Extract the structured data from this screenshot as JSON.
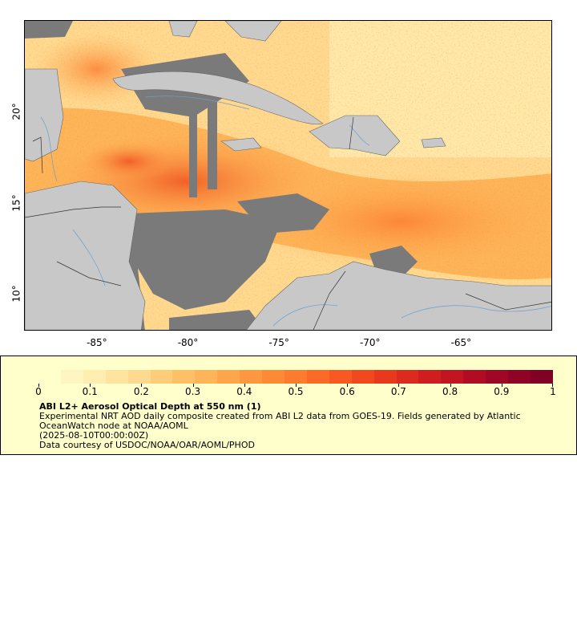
{
  "map": {
    "lon_min": -89,
    "lon_max": -60,
    "lat_min": 8,
    "lat_max": 25,
    "x_ticks": [
      {
        "value": -85,
        "label": "-85°"
      },
      {
        "value": -80,
        "label": "-80°"
      },
      {
        "value": -75,
        "label": "-75°"
      },
      {
        "value": -70,
        "label": "-70°"
      },
      {
        "value": -65,
        "label": "-65°"
      }
    ],
    "y_ticks": [
      {
        "value": 20,
        "label": "20°"
      },
      {
        "value": 15,
        "label": "15°"
      },
      {
        "value": 10,
        "label": "10°"
      }
    ],
    "colors": {
      "land": "#c8c8c8",
      "missing": "#7a7a7a",
      "border": "#333333",
      "river": "#6a9fd0"
    }
  },
  "legend": {
    "colors": [
      "#ffffcc",
      "#fff5c0",
      "#ffeeb0",
      "#ffe4a0",
      "#ffd98f",
      "#ffcc7a",
      "#fec066",
      "#feb458",
      "#fea64c",
      "#fd9840",
      "#fd8a36",
      "#fc7b2e",
      "#fc6a28",
      "#f85922",
      "#f1481e",
      "#e8391c",
      "#dd2a1e",
      "#d01e20",
      "#c11522",
      "#b10c24",
      "#a00626",
      "#8f0426",
      "#800026"
    ],
    "ticks": [
      {
        "value": 0,
        "label": "0"
      },
      {
        "value": 0.1,
        "label": "0.1"
      },
      {
        "value": 0.2,
        "label": "0.2"
      },
      {
        "value": 0.3,
        "label": "0.3"
      },
      {
        "value": 0.4,
        "label": "0.4"
      },
      {
        "value": 0.5,
        "label": "0.5"
      },
      {
        "value": 0.6,
        "label": "0.6"
      },
      {
        "value": 0.7,
        "label": "0.7"
      },
      {
        "value": 0.8,
        "label": "0.8"
      },
      {
        "value": 0.9,
        "label": "0.9"
      },
      {
        "value": 1,
        "label": "1"
      }
    ],
    "min": 0,
    "max": 1,
    "title": "ABI L2+ Aerosol Optical Depth at 550 nm (1)",
    "line1": "Experimental NRT AOD daily composite created from ABI L2 data from GOES-19. Fields generated by Atlantic OceanWatch node at NOAA/AOML",
    "line2": "(2025-08-10T00:00:00Z)",
    "line3": "Data courtesy of USDOC/NOAA/OAR/AOML/PHOD"
  }
}
